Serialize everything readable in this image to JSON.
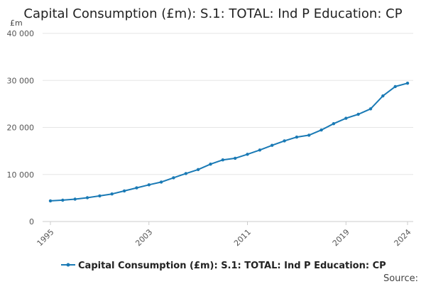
{
  "chart_data": {
    "type": "line",
    "title": "Capital Consumption (£m): S.1: TOTAL: Ind P Education: CP",
    "ylabel": "£m",
    "xlabel": "",
    "ylim": [
      0,
      40000
    ],
    "xlim": [
      1995,
      2024
    ],
    "yticks": [
      0,
      10000,
      20000,
      30000,
      40000
    ],
    "ytick_labels": [
      "0",
      "10 000",
      "20 000",
      "30 000",
      "40 000"
    ],
    "xticks": [
      1995,
      2003,
      2011,
      2019,
      2024
    ],
    "xtick_labels": [
      "1995",
      "2003",
      "2011",
      "2019",
      "2024"
    ],
    "grid": true,
    "legend_position": "bottom",
    "series": [
      {
        "name": "Capital Consumption (£m): S.1: TOTAL: Ind P Education: CP",
        "color": "#1a7ab5",
        "x": [
          1995,
          1996,
          1997,
          1998,
          1999,
          2000,
          2001,
          2002,
          2003,
          2004,
          2005,
          2006,
          2007,
          2008,
          2009,
          2010,
          2011,
          2012,
          2013,
          2014,
          2015,
          2016,
          2017,
          2018,
          2019,
          2020,
          2021,
          2022,
          2023,
          2024
        ],
        "values": [
          4400,
          4550,
          4750,
          5050,
          5450,
          5850,
          6500,
          7150,
          7800,
          8400,
          9300,
          10200,
          11050,
          12200,
          13100,
          13450,
          14300,
          15200,
          16200,
          17150,
          17950,
          18350,
          19450,
          20800,
          21950,
          22800,
          23950,
          26700,
          28700,
          29400
        ]
      }
    ]
  },
  "source_label": "Source:"
}
